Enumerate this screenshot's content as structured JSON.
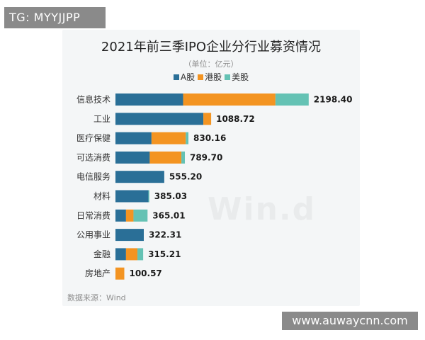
{
  "overlay": {
    "tg_label": "TG: MYYJJPP",
    "site_url": "www.auwaycnn.com"
  },
  "chart_data": {
    "type": "bar",
    "orientation": "horizontal",
    "stacked": true,
    "title": "2021年前三季IPO企业分行业募资情况",
    "subtitle": "（单位：亿元）",
    "source": "数据来源：Wind",
    "watermark": "Win.d",
    "legend_position": "top",
    "grid": false,
    "categories": [
      "信息技术",
      "工业",
      "医疗保健",
      "可选消费",
      "电信服务",
      "材料",
      "日常消费",
      "公用事业",
      "金融",
      "房地产"
    ],
    "totals": [
      "2198.40",
      "1088.72",
      "830.16",
      "789.70",
      "555.20",
      "385.03",
      "365.01",
      "322.31",
      "315.21",
      "100.57"
    ],
    "series": [
      {
        "name": "A股",
        "color": "#2a6f97",
        "values": [
          770,
          1000,
          410,
          390,
          555.2,
          375,
          120,
          322.31,
          120,
          0
        ]
      },
      {
        "name": "港股",
        "color": "#f39422",
        "values": [
          1050,
          88.72,
          390,
          360,
          0,
          0,
          85,
          0,
          130,
          100.57
        ]
      },
      {
        "name": "美股",
        "color": "#64c2b4",
        "values": [
          378.4,
          0,
          30.16,
          39.7,
          0,
          10.03,
          160.01,
          0,
          65.21,
          0
        ]
      }
    ],
    "xlim": [
      0,
      2200
    ]
  }
}
